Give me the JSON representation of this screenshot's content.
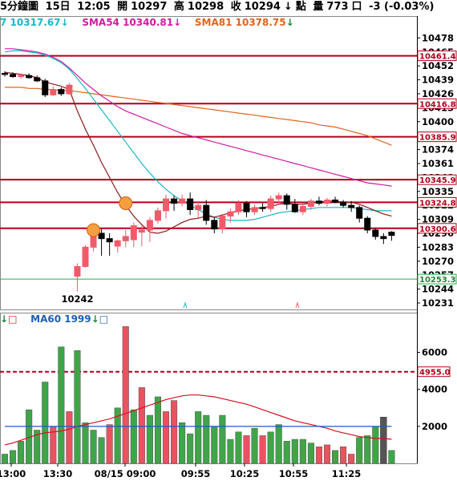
{
  "header": {
    "period": "5分鐘圖",
    "day": "15日",
    "time": "12:05",
    "open_label": "開",
    "open": "10297",
    "high_label": "高",
    "high": "10298",
    "close_label": "收",
    "close": "10294",
    "point_label": "點",
    "vol_label": "量",
    "volume": "773",
    "unit": "口",
    "change": "-3 (-0.03%)"
  },
  "ma_legend": [
    {
      "label": "7 10317.67",
      "color": "#19b7c8"
    },
    {
      "label": "SMA54 10340.81",
      "color": "#d21aa0"
    },
    {
      "label": "SMA81 10378.75",
      "color": "#e0641e"
    }
  ],
  "vol_legend": {
    "ma60": "MA60 1999",
    "ma60_color": "#1d5fb5"
  },
  "colors": {
    "up": "#f25a6a",
    "down": "#000000",
    "vol_up": "#e8535f",
    "vol_down": "#3fa548",
    "level_line": "#b0001a",
    "support_line": "#2ca84a",
    "ma_short": "#8b1a1a",
    "ma_cyan": "#19b7c8",
    "ma_magenta": "#d21aa0",
    "ma_orange": "#e0641e",
    "vol_ma_red": "#d8101c",
    "vol_ma_blue": "#1d5fb5"
  },
  "chart_data": [
    {
      "type": "candlestick",
      "ylim": [
        10225,
        10485
      ],
      "yticks": [
        10478,
        10465,
        10452,
        10439,
        10426,
        10413,
        10400,
        10387,
        10374,
        10361,
        10348,
        10335,
        10322,
        10309,
        10296,
        10283,
        10270,
        10257,
        10244,
        10231
      ],
      "levels": [
        {
          "value": 10461.4,
          "label": "10461.4"
        },
        {
          "value": 10416.8,
          "label": "10416.8"
        },
        {
          "value": 10385.9,
          "label": "10385.9"
        },
        {
          "value": 10345.9,
          "label": "10345.9"
        },
        {
          "value": 10324.8,
          "label": "10324.8"
        },
        {
          "value": 10300.6,
          "label": "10300.6"
        }
      ],
      "support": {
        "value": 10253.3,
        "label": "10253.3"
      },
      "low_annotation": "10242",
      "candles": [
        {
          "o": 10445,
          "h": 10447,
          "l": 10442,
          "c": 10444
        },
        {
          "o": 10444,
          "h": 10446,
          "l": 10441,
          "c": 10442
        },
        {
          "o": 10442,
          "h": 10444,
          "l": 10440,
          "c": 10443
        },
        {
          "o": 10443,
          "h": 10445,
          "l": 10440,
          "c": 10441
        },
        {
          "o": 10441,
          "h": 10443,
          "l": 10437,
          "c": 10438
        },
        {
          "o": 10438,
          "h": 10440,
          "l": 10423,
          "c": 10425
        },
        {
          "o": 10425,
          "h": 10433,
          "l": 10424,
          "c": 10430
        },
        {
          "o": 10430,
          "h": 10432,
          "l": 10424,
          "c": 10426
        },
        {
          "o": 10426,
          "h": 10436,
          "l": 10425,
          "c": 10434
        },
        {
          "o": 10256,
          "h": 10268,
          "l": 10242,
          "c": 10265
        },
        {
          "o": 10265,
          "h": 10285,
          "l": 10264,
          "c": 10283
        },
        {
          "o": 10283,
          "h": 10299,
          "l": 10279,
          "c": 10296
        },
        {
          "o": 10296,
          "h": 10300,
          "l": 10275,
          "c": 10291
        },
        {
          "o": 10291,
          "h": 10296,
          "l": 10275,
          "c": 10288
        },
        {
          "o": 10284,
          "h": 10290,
          "l": 10278,
          "c": 10289
        },
        {
          "o": 10289,
          "h": 10299,
          "l": 10283,
          "c": 10293
        },
        {
          "o": 10290,
          "h": 10306,
          "l": 10283,
          "c": 10303
        },
        {
          "o": 10297,
          "h": 10303,
          "l": 10284,
          "c": 10299
        },
        {
          "o": 10299,
          "h": 10311,
          "l": 10288,
          "c": 10308
        },
        {
          "o": 10308,
          "h": 10320,
          "l": 10305,
          "c": 10317
        },
        {
          "o": 10317,
          "h": 10332,
          "l": 10310,
          "c": 10328
        },
        {
          "o": 10328,
          "h": 10331,
          "l": 10317,
          "c": 10324
        },
        {
          "o": 10324,
          "h": 10332,
          "l": 10321,
          "c": 10328
        },
        {
          "o": 10328,
          "h": 10334,
          "l": 10313,
          "c": 10318
        },
        {
          "o": 10318,
          "h": 10325,
          "l": 10309,
          "c": 10322
        },
        {
          "o": 10322,
          "h": 10327,
          "l": 10304,
          "c": 10308
        },
        {
          "o": 10308,
          "h": 10311,
          "l": 10296,
          "c": 10300
        },
        {
          "o": 10300,
          "h": 10314,
          "l": 10296,
          "c": 10312
        },
        {
          "o": 10312,
          "h": 10319,
          "l": 10306,
          "c": 10316
        },
        {
          "o": 10316,
          "h": 10327,
          "l": 10313,
          "c": 10324
        },
        {
          "o": 10324,
          "h": 10326,
          "l": 10311,
          "c": 10316
        },
        {
          "o": 10316,
          "h": 10323,
          "l": 10313,
          "c": 10320
        },
        {
          "o": 10320,
          "h": 10324,
          "l": 10316,
          "c": 10319
        },
        {
          "o": 10319,
          "h": 10331,
          "l": 10316,
          "c": 10328
        },
        {
          "o": 10328,
          "h": 10334,
          "l": 10324,
          "c": 10331
        },
        {
          "o": 10331,
          "h": 10333,
          "l": 10318,
          "c": 10323
        },
        {
          "o": 10323,
          "h": 10328,
          "l": 10315,
          "c": 10316
        },
        {
          "o": 10316,
          "h": 10324,
          "l": 10313,
          "c": 10321
        },
        {
          "o": 10321,
          "h": 10328,
          "l": 10318,
          "c": 10326
        },
        {
          "o": 10326,
          "h": 10330,
          "l": 10322,
          "c": 10324
        },
        {
          "o": 10324,
          "h": 10329,
          "l": 10321,
          "c": 10327
        },
        {
          "o": 10327,
          "h": 10330,
          "l": 10324,
          "c": 10325
        },
        {
          "o": 10325,
          "h": 10327,
          "l": 10320,
          "c": 10322
        },
        {
          "o": 10322,
          "h": 10326,
          "l": 10316,
          "c": 10320
        },
        {
          "o": 10320,
          "h": 10322,
          "l": 10306,
          "c": 10310
        },
        {
          "o": 10310,
          "h": 10312,
          "l": 10296,
          "c": 10299
        },
        {
          "o": 10299,
          "h": 10301,
          "l": 10290,
          "c": 10293
        },
        {
          "o": 10293,
          "h": 10296,
          "l": 10286,
          "c": 10291
        },
        {
          "o": 10297,
          "h": 10298,
          "l": 10289,
          "c": 10294
        }
      ],
      "ma_short": [
        10446,
        10445,
        10444,
        10443,
        10441,
        10437,
        10435,
        10433,
        10430,
        10410,
        10393,
        10378,
        10362,
        10348,
        10334,
        10322,
        10312,
        10304,
        10297,
        10296,
        10298,
        10302,
        10306,
        10309,
        10310,
        10312,
        10311,
        10313,
        10315,
        10317,
        10318,
        10319,
        10320,
        10321,
        10323,
        10324,
        10323,
        10323,
        10324,
        10325,
        10326,
        10326,
        10325,
        10325,
        10323,
        10320,
        10317,
        10314,
        10312
      ],
      "ma_cyan": [
        10465,
        10466,
        10466,
        10465,
        10464,
        10462,
        10459,
        10455,
        10449,
        10440,
        10431,
        10421,
        10411,
        10401,
        10391,
        10381,
        10371,
        10361,
        10352,
        10344,
        10337,
        10331,
        10326,
        10322,
        10318,
        10314,
        10311,
        10309,
        10308,
        10308,
        10308,
        10309,
        10311,
        10313,
        10315,
        10316,
        10317,
        10318,
        10319,
        10320,
        10320,
        10320,
        10320,
        10320,
        10319,
        10318,
        10317,
        10317,
        10317
      ],
      "ma_magenta": [
        10468,
        10468,
        10467,
        10466,
        10465,
        10463,
        10460,
        10456,
        10450,
        10443,
        10436,
        10430,
        10424,
        10419,
        10414,
        10410,
        10407,
        10404,
        10401,
        10398,
        10395,
        10392,
        10389,
        10387,
        10385,
        10383,
        10381,
        10379,
        10377,
        10375,
        10373,
        10371,
        10369,
        10367,
        10365,
        10363,
        10361,
        10359,
        10357,
        10355,
        10353,
        10351,
        10349,
        10347,
        10345,
        10343,
        10342,
        10341,
        10340
      ],
      "ma_orange": [
        10432,
        10432,
        10432,
        10431,
        10431,
        10430,
        10430,
        10429,
        10429,
        10428,
        10427,
        10426,
        10425,
        10424,
        10423,
        10422,
        10421,
        10420,
        10419,
        10418,
        10417,
        10416,
        10415,
        10414,
        10413,
        10412,
        10411,
        10410,
        10409,
        10408,
        10407,
        10406,
        10405,
        10404,
        10403,
        10402,
        10401,
        10400,
        10399,
        10397,
        10396,
        10395,
        10393,
        10391,
        10389,
        10387,
        10384,
        10381,
        10378
      ]
    },
    {
      "type": "bar",
      "title": "volume",
      "ylim": [
        0,
        7500
      ],
      "yticks": [
        2000,
        4000,
        6000
      ],
      "level": {
        "value": 4955,
        "label": "4955.0"
      },
      "xticks": [
        "13:00",
        "13:30",
        "08/15 09:00",
        "09:55",
        "10:25",
        "10:55",
        "11:25"
      ],
      "volumes": [
        {
          "v": 500,
          "up": false
        },
        {
          "v": 700,
          "up": false
        },
        {
          "v": 1200,
          "up": false
        },
        {
          "v": 2900,
          "up": false
        },
        {
          "v": 1800,
          "up": false
        },
        {
          "v": 4400,
          "up": false
        },
        {
          "v": 2000,
          "up": true
        },
        {
          "v": 6300,
          "up": false
        },
        {
          "v": 2800,
          "up": true
        },
        {
          "v": 6100,
          "up": false
        },
        {
          "v": 2200,
          "up": false
        },
        {
          "v": 1800,
          "up": false
        },
        {
          "v": 1400,
          "up": false
        },
        {
          "v": 2100,
          "up": true
        },
        {
          "v": 3000,
          "up": false
        },
        {
          "v": 7400,
          "up": true
        },
        {
          "v": 2900,
          "up": false
        },
        {
          "v": 4100,
          "up": true
        },
        {
          "v": 2600,
          "up": false
        },
        {
          "v": 3600,
          "up": false
        },
        {
          "v": 2800,
          "up": true
        },
        {
          "v": 3400,
          "up": true
        },
        {
          "v": 2200,
          "up": false
        },
        {
          "v": 1600,
          "up": false
        },
        {
          "v": 2800,
          "up": false
        },
        {
          "v": 2600,
          "up": false
        },
        {
          "v": 2000,
          "up": false
        },
        {
          "v": 2600,
          "up": false
        },
        {
          "v": 1300,
          "up": false
        },
        {
          "v": 1700,
          "up": false
        },
        {
          "v": 1500,
          "up": true
        },
        {
          "v": 1900,
          "up": false
        },
        {
          "v": 1500,
          "up": true
        },
        {
          "v": 1700,
          "up": false
        },
        {
          "v": 2100,
          "up": false
        },
        {
          "v": 1200,
          "up": false
        },
        {
          "v": 1300,
          "up": false
        },
        {
          "v": 1300,
          "up": false
        },
        {
          "v": 1100,
          "up": false
        },
        {
          "v": 900,
          "up": true
        },
        {
          "v": 1000,
          "up": true
        },
        {
          "v": 700,
          "up": false
        },
        {
          "v": 900,
          "up": true
        },
        {
          "v": 500,
          "up": true
        },
        {
          "v": 1400,
          "up": false
        },
        {
          "v": 1500,
          "up": false
        },
        {
          "v": 2000,
          "up": false
        },
        {
          "v": 2500,
          "up": false
        },
        {
          "v": 700,
          "up": false
        }
      ],
      "ma_red": [
        1000,
        1100,
        1250,
        1400,
        1550,
        1650,
        1700,
        1750,
        1850,
        2000,
        2100,
        2200,
        2300,
        2400,
        2550,
        2700,
        2850,
        3000,
        3150,
        3300,
        3450,
        3550,
        3650,
        3700,
        3700,
        3650,
        3600,
        3500,
        3400,
        3300,
        3200,
        3050,
        2900,
        2750,
        2600,
        2450,
        2300,
        2200,
        2100,
        2000,
        1900,
        1750,
        1650,
        1550,
        1450,
        1400,
        1350,
        1350,
        1300
      ],
      "ma_blue": [
        2000,
        2000,
        2000,
        2000,
        2000,
        2000,
        2000,
        2000,
        2000,
        2000,
        2000,
        2000,
        2000,
        2000,
        2000,
        2000,
        2000,
        2000,
        2000,
        2000,
        2000,
        2000,
        2000,
        2000,
        2000,
        2000,
        2000,
        2000,
        2000,
        2000,
        2000,
        2000,
        2000,
        2000,
        2000,
        2000,
        2000,
        2000,
        2000,
        2000,
        2000,
        2000,
        2000,
        2000,
        2000,
        2000,
        2000,
        2000,
        2000
      ]
    }
  ]
}
